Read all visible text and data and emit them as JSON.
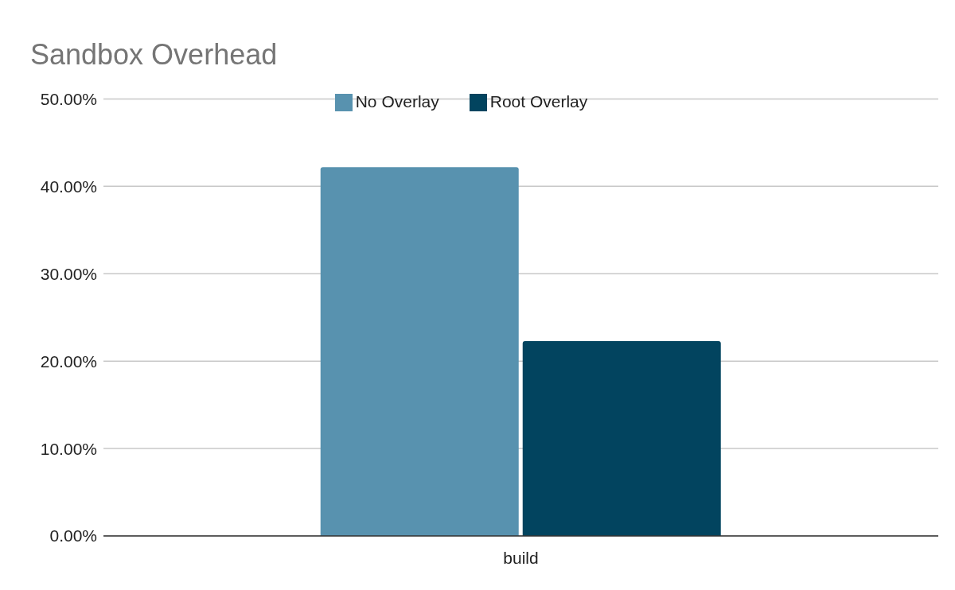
{
  "chart_data": {
    "type": "bar",
    "title": "Sandbox Overhead",
    "categories": [
      "build"
    ],
    "series": [
      {
        "name": "No Overlay",
        "color": "#5892af",
        "values": [
          42.2
        ]
      },
      {
        "name": "Root Overlay",
        "color": "#02445f",
        "values": [
          22.3
        ]
      }
    ],
    "ylim": [
      0,
      50
    ],
    "yticks": [
      {
        "value": 0,
        "label": "0.00%"
      },
      {
        "value": 10,
        "label": "10.00%"
      },
      {
        "value": 20,
        "label": "20.00%"
      },
      {
        "value": 30,
        "label": "30.00%"
      },
      {
        "value": 40,
        "label": "40.00%"
      },
      {
        "value": 50,
        "label": "50.00%"
      }
    ],
    "grid": "y",
    "legend": "top"
  }
}
